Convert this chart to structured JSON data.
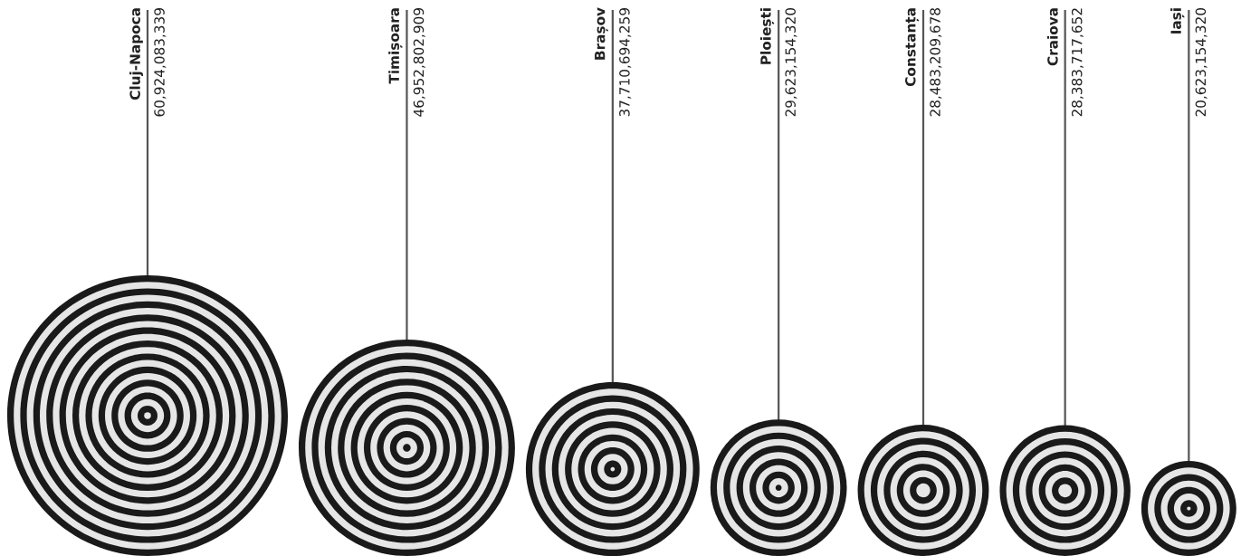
{
  "chart_data": {
    "type": "other",
    "categories": [
      "Cluj-Napoca",
      "Timișoara",
      "Brașov",
      "Ploiești",
      "Constanța",
      "Craiova",
      "Iași"
    ],
    "values": [
      60924083339,
      46952802909,
      37710694259,
      29623154320,
      28483209678,
      28383717652,
      20623154320
    ],
    "value_labels": [
      "60,924,083,339",
      "46,952,802,909",
      "37,710,694,259",
      "29,623,154,320",
      "28,483,209,678",
      "28,383,717,652",
      "20,623,154,320"
    ],
    "colors": [
      "#1a1a1a",
      "#1a1a1a",
      "#1a1a1a",
      "#1a1a1a",
      "#1a1a1a",
      "#1a1a1a",
      "#1a1a1a"
    ]
  }
}
